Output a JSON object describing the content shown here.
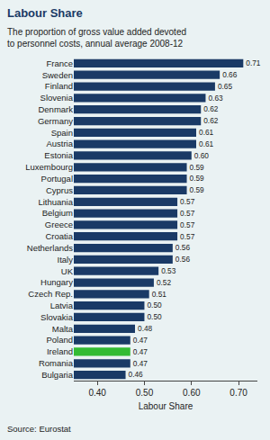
{
  "chart_data": {
    "type": "bar",
    "orientation": "horizontal",
    "title": "Labour Share",
    "subtitle": "The proportion of gross value added devoted to personnel costs, annual average 2008-12",
    "x_label": "Labour Share",
    "source": "Source: Eurostat",
    "categories": [
      "France",
      "Sweden",
      "Finland",
      "Slovenia",
      "Denmark",
      "Germany",
      "Spain",
      "Austria",
      "Estonia",
      "Luxembourg",
      "Portugal",
      "Cyprus",
      "Lithuania",
      "Belgium",
      "Greece",
      "Croatia",
      "Netherlands",
      "Italy",
      "UK",
      "Hungary",
      "Czech Rep.",
      "Latvia",
      "Slovakia",
      "Malta",
      "Poland",
      "Ireland",
      "Romania",
      "Bulgaria"
    ],
    "values": [
      0.71,
      0.66,
      0.65,
      0.63,
      0.62,
      0.62,
      0.61,
      0.61,
      0.6,
      0.59,
      0.59,
      0.59,
      0.57,
      0.57,
      0.57,
      0.57,
      0.56,
      0.56,
      0.53,
      0.52,
      0.51,
      0.5,
      0.5,
      0.48,
      0.47,
      0.47,
      0.47,
      0.46
    ],
    "value_labels": [
      "0.71",
      "0.66",
      "0.65",
      "0.63",
      "0.62",
      "0.62",
      "0.61",
      "0.61",
      "0.60",
      "0.59",
      "0.59",
      "0.59",
      "0.57",
      "0.57",
      "0.57",
      "0.57",
      "0.56",
      "0.56",
      "0.53",
      "0.52",
      "0.51",
      "0.50",
      "0.50",
      "0.48",
      "0.47",
      "0.47",
      "0.47",
      "0.46"
    ],
    "data_labels": true,
    "colors": [
      "#1a3a66",
      "#1a3a66",
      "#1a3a66",
      "#1a3a66",
      "#1a3a66",
      "#1a3a66",
      "#1a3a66",
      "#1a3a66",
      "#1a3a66",
      "#1a3a66",
      "#1a3a66",
      "#1a3a66",
      "#1a3a66",
      "#1a3a66",
      "#1a3a66",
      "#1a3a66",
      "#1a3a66",
      "#1a3a66",
      "#1a3a66",
      "#1a3a66",
      "#1a3a66",
      "#1a3a66",
      "#1a3a66",
      "#1a3a66",
      "#1a3a66",
      "#33bb33",
      "#1a3a66",
      "#1a3a66"
    ],
    "xlim": [
      0.35,
      0.74
    ],
    "xticks": [
      {
        "value": 0.4,
        "label": "0.40"
      },
      {
        "value": 0.5,
        "label": "0.50"
      },
      {
        "value": 0.6,
        "label": "0.60"
      },
      {
        "value": 0.7,
        "label": "0.70"
      }
    ],
    "grid": false
  }
}
